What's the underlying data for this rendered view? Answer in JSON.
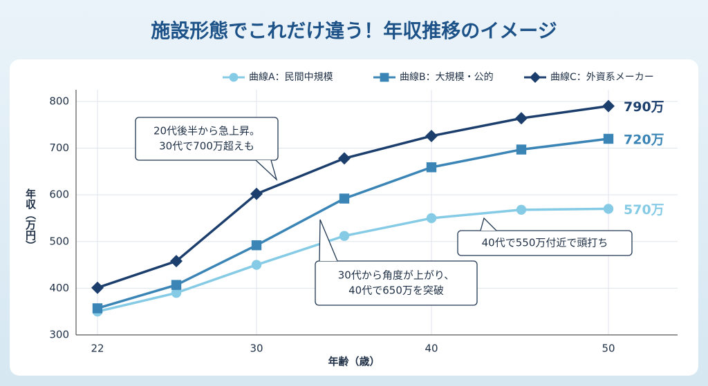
{
  "chart_data": {
    "type": "line",
    "title": "施設形態でこれだけ違う！年収推移のイメージ",
    "x_label": "年齢（歳）",
    "y_label": "年収（万円）",
    "categories": [
      "22",
      null,
      "30",
      null,
      "40",
      null,
      "50"
    ],
    "ylim": [
      300,
      825
    ],
    "yticks": [
      300,
      400,
      500,
      600,
      700,
      800
    ],
    "grid": true,
    "legend": "top-right",
    "series": [
      {
        "name": "曲線A：民間中規模",
        "color": "#86cbe6",
        "marker": "circle",
        "values": [
          350,
          390,
          450,
          512,
          550,
          568,
          570
        ],
        "value_labels": [
          null,
          null,
          null,
          null,
          null,
          null,
          "570万"
        ]
      },
      {
        "name": "曲線B：大規模・公的",
        "color": "#3a84b6",
        "marker": "square",
        "values": [
          357,
          407,
          492,
          592,
          659,
          697,
          720
        ],
        "value_labels": [
          null,
          null,
          null,
          null,
          null,
          null,
          "720万"
        ]
      },
      {
        "name": "曲線C：外資系メーカー",
        "color": "#1b3e6d",
        "marker": "diamond",
        "values": [
          401,
          458,
          602,
          678,
          726,
          764,
          790
        ],
        "value_labels": [
          null,
          null,
          null,
          null,
          null,
          null,
          "790万"
        ]
      }
    ],
    "annotations": [
      [
        "20代後半から急上昇。",
        "30代で700万超えも"
      ],
      [
        "30代から角度が上がり、",
        "40代で650万を突破"
      ],
      [
        "40代で550万付近で頭打ち"
      ]
    ]
  }
}
